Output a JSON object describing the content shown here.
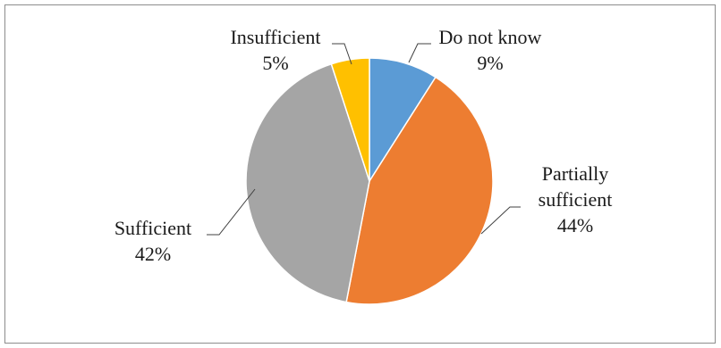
{
  "chart_data": {
    "type": "pie",
    "title": "",
    "slices": [
      {
        "label": "Do not know",
        "value": 9,
        "value_label": "9%",
        "color": "#5B9BD5"
      },
      {
        "label": "Partially sufficient",
        "label_lines": [
          "Partially",
          "sufficient"
        ],
        "value": 44,
        "value_label": "44%",
        "color": "#ED7D31"
      },
      {
        "label": "Sufficient",
        "value": 42,
        "value_label": "42%",
        "color": "#A5A5A5"
      },
      {
        "label": "Insufficient",
        "value": 5,
        "value_label": "5%",
        "color": "#FFC000"
      }
    ],
    "start_angle_deg": 0,
    "direction": "clockwise",
    "legend": "none",
    "leader_lines": true
  }
}
